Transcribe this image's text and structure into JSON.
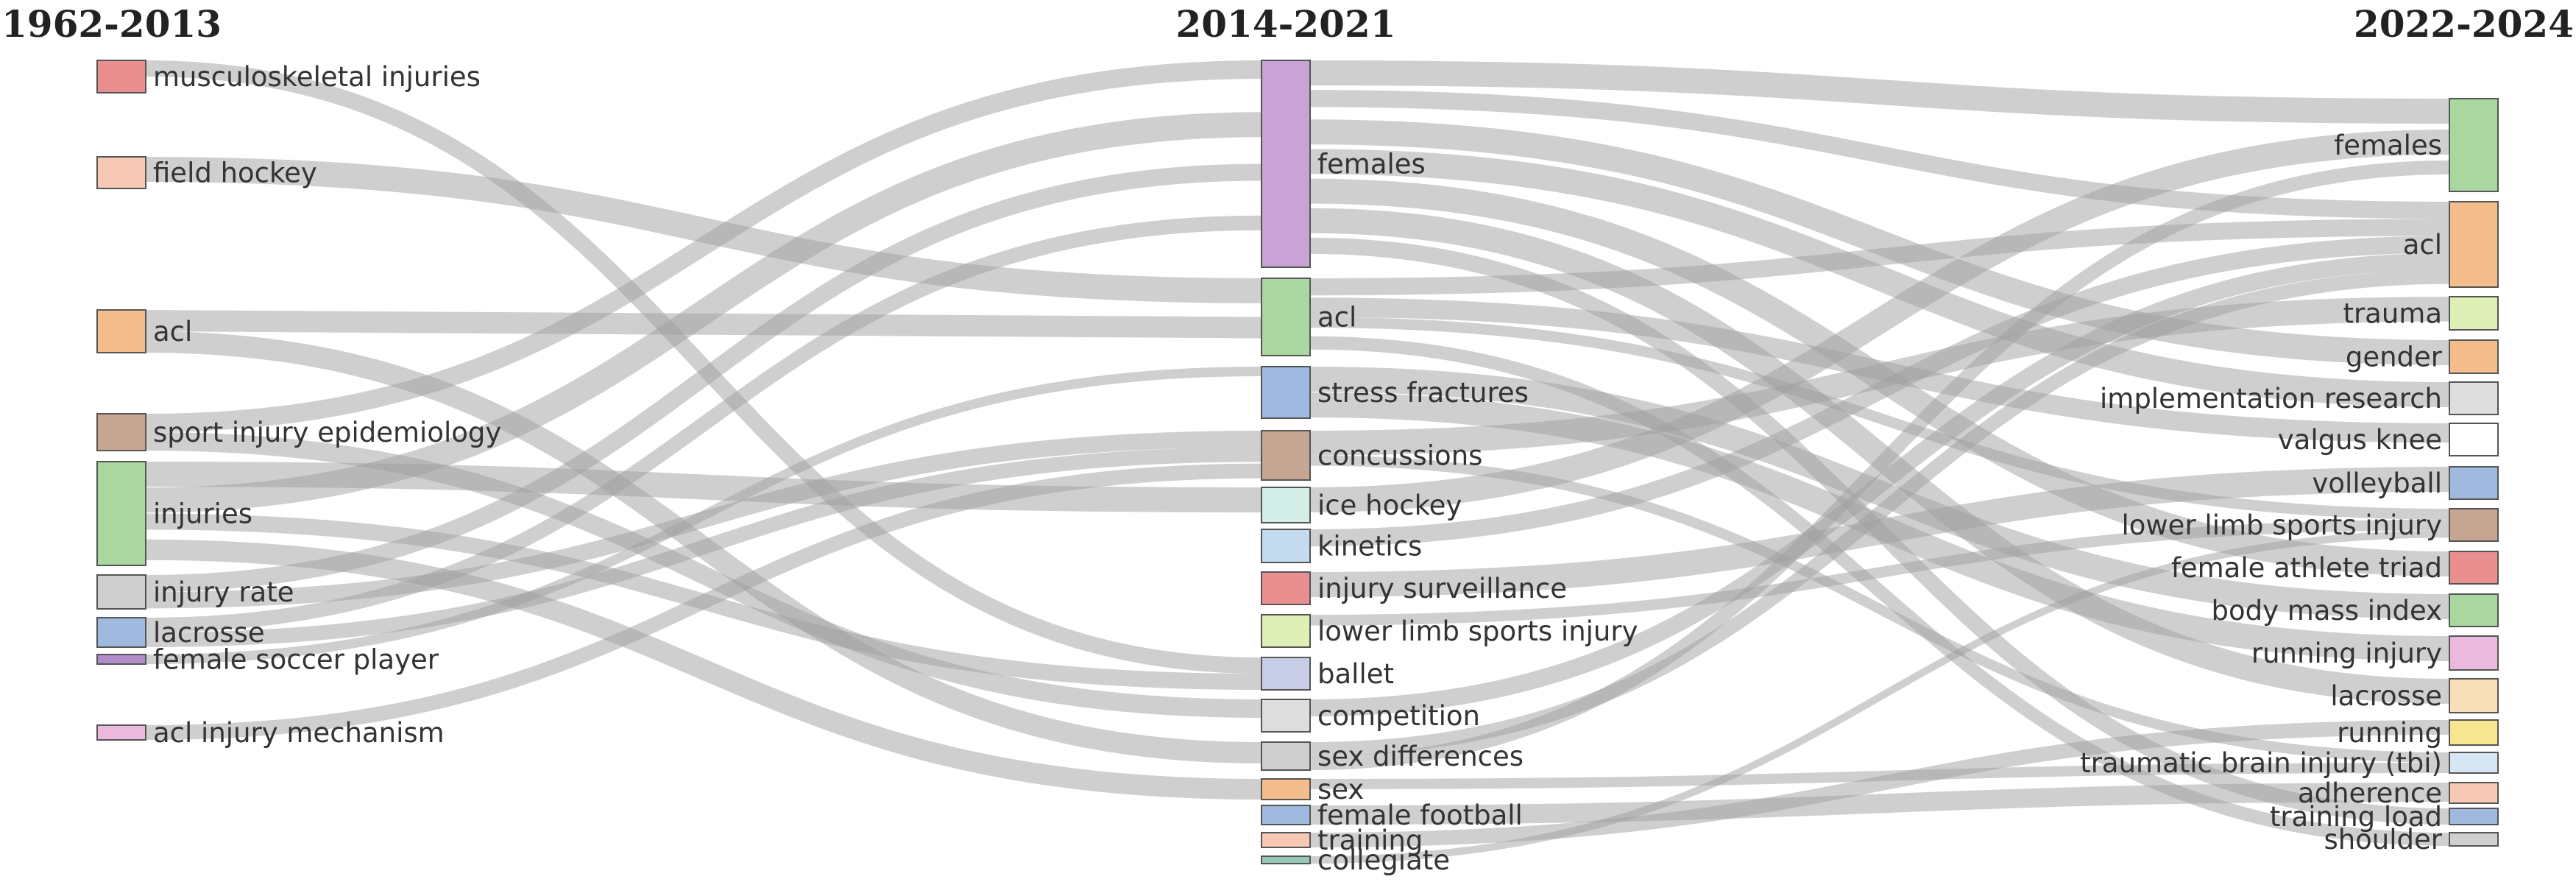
{
  "periods": [
    {
      "id": "p1",
      "label": "1962-2013"
    },
    {
      "id": "p2",
      "label": "2014-2021"
    },
    {
      "id": "p3",
      "label": "2022-2024"
    }
  ],
  "nodes": {
    "p1": [
      {
        "label": "musculoskeletal injuries",
        "color": "#e98f8f"
      },
      {
        "label": "field hockey",
        "color": "#f7c9b4"
      },
      {
        "label": "acl",
        "color": "#f6bd8c"
      },
      {
        "label": "sport injury epidemiology",
        "color": "#c7a593"
      },
      {
        "label": "injuries",
        "color": "#aad7a0"
      },
      {
        "label": "injury rate",
        "color": "#cfcfcf"
      },
      {
        "label": "lacrosse",
        "color": "#9fbade"
      },
      {
        "label": "female soccer player",
        "color": "#b18ccb"
      },
      {
        "label": "acl injury mechanism",
        "color": "#ebb8de"
      }
    ],
    "p2": [
      {
        "label": "females",
        "color": "#c9a3d6"
      },
      {
        "label": "acl",
        "color": "#aad7a0"
      },
      {
        "label": "stress fractures",
        "color": "#9fbade"
      },
      {
        "label": "concussions",
        "color": "#c7a593"
      },
      {
        "label": "ice hockey",
        "color": "#d2eee6"
      },
      {
        "label": "kinetics",
        "color": "#c4dbef"
      },
      {
        "label": "injury surveillance",
        "color": "#e98f8f"
      },
      {
        "label": "lower limb sports injury",
        "color": "#dff0b7"
      },
      {
        "label": "ballet",
        "color": "#c8cde7"
      },
      {
        "label": "competition",
        "color": "#dedede"
      },
      {
        "label": "sex differences",
        "color": "#cfcfcf"
      },
      {
        "label": "sex",
        "color": "#f6bd8c"
      },
      {
        "label": "female football",
        "color": "#9fbade"
      },
      {
        "label": "training",
        "color": "#f7c9b4"
      },
      {
        "label": "collegiate",
        "color": "#94c9b5"
      }
    ],
    "p3": [
      {
        "label": "females",
        "color": "#aad7a0"
      },
      {
        "label": "acl",
        "color": "#f6bd8c"
      },
      {
        "label": "trauma",
        "color": "#dff0b7"
      },
      {
        "label": "gender",
        "color": "#f6bd8c"
      },
      {
        "label": "implementation research",
        "color": "#dedede"
      },
      {
        "label": "valgus knee",
        "color": "#ffffff"
      },
      {
        "label": "volleyball",
        "color": "#9fbade"
      },
      {
        "label": "lower limb sports injury",
        "color": "#c7a593"
      },
      {
        "label": "female athlete triad",
        "color": "#e98f8f"
      },
      {
        "label": "body mass index",
        "color": "#aad7a0"
      },
      {
        "label": "running injury",
        "color": "#ebb8de"
      },
      {
        "label": "lacrosse",
        "color": "#f8dfba"
      },
      {
        "label": "running",
        "color": "#f8e58f"
      },
      {
        "label": "traumatic brain injury (tbi)",
        "color": "#d7e6f4"
      },
      {
        "label": "adherence",
        "color": "#f7c9b4"
      },
      {
        "label": "training load",
        "color": "#9fbade"
      },
      {
        "label": "shoulder",
        "color": "#cfcfcf"
      }
    ]
  },
  "flows": [
    {
      "source": "p1.musculoskeletal injuries",
      "target": "p2.ballet"
    },
    {
      "source": "p1.field hockey",
      "target": "p2.acl"
    },
    {
      "source": "p1.acl",
      "target": "p2.acl"
    },
    {
      "source": "p1.acl",
      "target": "p2.sex differences"
    },
    {
      "source": "p1.sport injury epidemiology",
      "target": "p2.females"
    },
    {
      "source": "p1.sport injury epidemiology",
      "target": "p2.competition"
    },
    {
      "source": "p1.injuries",
      "target": "p2.ice hockey"
    },
    {
      "source": "p1.injuries",
      "target": "p2.females"
    },
    {
      "source": "p1.injuries",
      "target": "p2.ballet"
    },
    {
      "source": "p1.injuries",
      "target": "p2.sex"
    },
    {
      "source": "p1.injury rate",
      "target": "p2.females"
    },
    {
      "source": "p1.injury rate",
      "target": "p2.concussions"
    },
    {
      "source": "p1.lacrosse",
      "target": "p2.females"
    },
    {
      "source": "p1.lacrosse",
      "target": "p2.concussions"
    },
    {
      "source": "p1.female soccer player",
      "target": "p2.stress fractures"
    },
    {
      "source": "p1.acl injury mechanism",
      "target": "p2.concussions"
    },
    {
      "source": "p2.females",
      "target": "p3.females"
    },
    {
      "source": "p2.females",
      "target": "p3.acl"
    },
    {
      "source": "p2.females",
      "target": "p3.gender"
    },
    {
      "source": "p2.females",
      "target": "p3.implementation research"
    },
    {
      "source": "p2.females",
      "target": "p3.female athlete triad"
    },
    {
      "source": "p2.females",
      "target": "p3.lacrosse"
    },
    {
      "source": "p2.females",
      "target": "p3.training load"
    },
    {
      "source": "p2.acl",
      "target": "p3.acl"
    },
    {
      "source": "p2.acl",
      "target": "p3.valgus knee"
    },
    {
      "source": "p2.acl",
      "target": "p3.lower limb sports injury"
    },
    {
      "source": "p2.acl",
      "target": "p3.shoulder"
    },
    {
      "source": "p2.stress fractures",
      "target": "p3.body mass index"
    },
    {
      "source": "p2.stress fractures",
      "target": "p3.running injury"
    },
    {
      "source": "p2.concussions",
      "target": "p3.trauma"
    },
    {
      "source": "p2.concussions",
      "target": "p3.traumatic brain injury (tbi)"
    },
    {
      "source": "p2.ice hockey",
      "target": "p3.females"
    },
    {
      "source": "p2.kinetics",
      "target": "p3.acl"
    },
    {
      "source": "p2.injury surveillance",
      "target": "p3.volleyball"
    },
    {
      "source": "p2.lower limb sports injury",
      "target": "p3.lower limb sports injury"
    },
    {
      "source": "p2.competition",
      "target": "p3.acl"
    },
    {
      "source": "p2.sex differences",
      "target": "p3.acl"
    },
    {
      "source": "p2.sex differences",
      "target": "p3.females"
    },
    {
      "source": "p2.sex",
      "target": "p3.traumatic brain injury (tbi)"
    },
    {
      "source": "p2.female football",
      "target": "p3.adherence"
    },
    {
      "source": "p2.training",
      "target": "p3.running"
    },
    {
      "source": "p2.collegiate",
      "target": "p3.lower limb sports injury"
    }
  ]
}
